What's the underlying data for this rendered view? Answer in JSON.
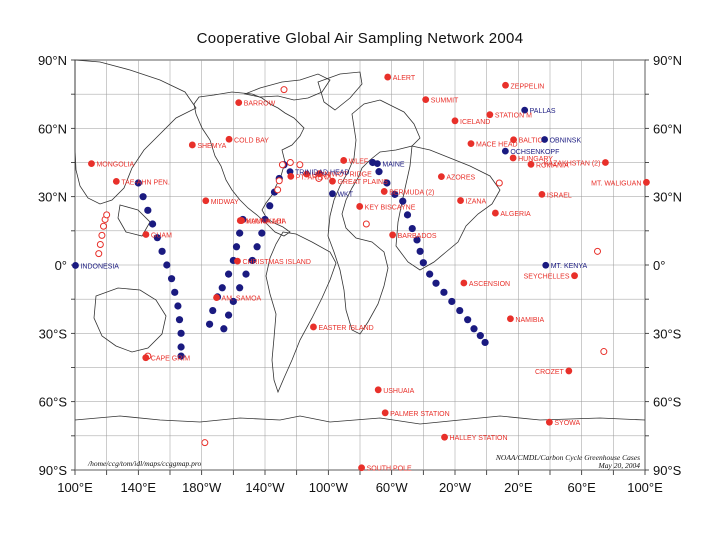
{
  "title": "Cooperative Global Air Sampling Network 2004",
  "colors": {
    "surface": "#e8302a",
    "ship": "#1a1a80",
    "tower": "#1a1a80",
    "grid": "#9a9a9a",
    "coast": "#333333"
  },
  "axes": {
    "lat_labels": [
      {
        "lat": 90,
        "text": "90°N"
      },
      {
        "lat": 60,
        "text": "60°N"
      },
      {
        "lat": 30,
        "text": "30°N"
      },
      {
        "lat": 0,
        "text": "0°"
      },
      {
        "lat": -30,
        "text": "30°S"
      },
      {
        "lat": -60,
        "text": "60°S"
      },
      {
        "lat": -90,
        "text": "90°S"
      }
    ],
    "lon_labels": [
      {
        "lon": 100,
        "text": "100°E"
      },
      {
        "lon": 140,
        "text": "140°E"
      },
      {
        "lon": 180,
        "text": "180°W"
      },
      {
        "lon": 220,
        "text": "140°W"
      },
      {
        "lon": 260,
        "text": "100°W"
      },
      {
        "lon": 300,
        "text": "60°W"
      },
      {
        "lon": 340,
        "text": "20°W"
      },
      {
        "lon": 380,
        "text": "20°E"
      },
      {
        "lon": 420,
        "text": "60°E"
      },
      {
        "lon": 460,
        "text": "100°E"
      }
    ]
  },
  "stations": [
    {
      "name": "ALERT",
      "lon": 297.5,
      "lat": 82.5,
      "color": "red",
      "type": "filled"
    },
    {
      "name": "ZEPPELIN",
      "lon": 371.9,
      "lat": 78.9,
      "color": "red",
      "type": "filled"
    },
    {
      "name": "BARROW",
      "lon": 203.4,
      "lat": 71.3,
      "color": "red",
      "type": "filled"
    },
    {
      "name": "SUMMIT",
      "lon": 321.5,
      "lat": 72.6,
      "color": "red",
      "type": "filled"
    },
    {
      "name": "PALLAS",
      "lon": 384.0,
      "lat": 68.0,
      "color": "blue",
      "type": "filled"
    },
    {
      "name": "STATION M",
      "lon": 362.0,
      "lat": 66.0,
      "color": "red",
      "type": "filled"
    },
    {
      "name": "ICELAND",
      "lon": 340.0,
      "lat": 63.3,
      "color": "red",
      "type": "filled"
    },
    {
      "name": "BALTIC",
      "lon": 377.0,
      "lat": 55.0,
      "color": "red",
      "type": "filled"
    },
    {
      "name": "OBNINSK",
      "lon": 396.6,
      "lat": 55.1,
      "color": "blue",
      "type": "filled"
    },
    {
      "name": "COLD BAY",
      "lon": 197.3,
      "lat": 55.2,
      "color": "red",
      "type": "filled"
    },
    {
      "name": "SHEMYA",
      "lon": 174.1,
      "lat": 52.7,
      "color": "red",
      "type": "filled"
    },
    {
      "name": "MACE HEAD",
      "lon": 350.1,
      "lat": 53.3,
      "color": "red",
      "type": "filled"
    },
    {
      "name": "OCHSENKOPF",
      "lon": 371.8,
      "lat": 50.0,
      "color": "blue",
      "type": "filled"
    },
    {
      "name": "HUNGARY",
      "lon": 376.7,
      "lat": 47.0,
      "color": "red",
      "type": "filled"
    },
    {
      "name": "KAZAKHSTAN (2)",
      "lon": 435.0,
      "lat": 45.0,
      "color": "red",
      "type": "filled"
    },
    {
      "name": "ROMANIA",
      "lon": 388.0,
      "lat": 44.2,
      "color": "red",
      "type": "filled"
    },
    {
      "name": "MONGOLIA",
      "lon": 110.4,
      "lat": 44.5,
      "color": "red",
      "type": "filled"
    },
    {
      "name": "UTAH",
      "lon": 246.3,
      "lat": 39.9,
      "color": "red",
      "type": "filled"
    },
    {
      "name": "WLEF",
      "lon": 269.7,
      "lat": 45.9,
      "color": "red",
      "type": "filled"
    },
    {
      "name": "MAINE",
      "lon": 291.0,
      "lat": 44.5,
      "color": "blue",
      "type": "filled"
    },
    {
      "name": "NIWOT RIDGE",
      "lon": 254.4,
      "lat": 40.1,
      "color": "red",
      "type": "filled"
    },
    {
      "name": "GREAT PLAINS",
      "lon": 262.6,
      "lat": 36.8,
      "color": "red",
      "type": "filled"
    },
    {
      "name": "TRINIDAD HEAD",
      "lon": 235.8,
      "lat": 41.0,
      "color": "blue",
      "type": "filled"
    },
    {
      "name": "PT. ARENA",
      "lon": 236.3,
      "lat": 38.9,
      "color": "red",
      "type": "filled"
    },
    {
      "name": "WKT",
      "lon": 262.6,
      "lat": 31.3,
      "color": "blue",
      "type": "filled"
    },
    {
      "name": "AZORES",
      "lon": 331.4,
      "lat": 38.8,
      "color": "red",
      "type": "filled"
    },
    {
      "name": "MT. WALIGUAN",
      "lon": 460.9,
      "lat": 36.3,
      "color": "red",
      "type": "filled"
    },
    {
      "name": "BERMUDA (2)",
      "lon": 295.3,
      "lat": 32.3,
      "color": "red",
      "type": "filled"
    },
    {
      "name": "KEY BISCAYNE",
      "lon": 279.8,
      "lat": 25.7,
      "color": "red",
      "type": "filled"
    },
    {
      "name": "IZANA",
      "lon": 343.5,
      "lat": 28.3,
      "color": "red",
      "type": "filled"
    },
    {
      "name": "ISRAEL",
      "lon": 394.9,
      "lat": 31.0,
      "color": "red",
      "type": "filled"
    },
    {
      "name": "ALGERIA",
      "lon": 365.5,
      "lat": 22.8,
      "color": "red",
      "type": "filled"
    },
    {
      "name": "MIDWAY",
      "lon": 182.6,
      "lat": 28.2,
      "color": "red",
      "type": "filled"
    },
    {
      "name": "TAE-AHN PEN.",
      "lon": 126.1,
      "lat": 36.7,
      "color": "red",
      "type": "filled"
    },
    {
      "name": "MAUNA LOA",
      "lon": 204.4,
      "lat": 19.5,
      "color": "red",
      "type": "filled"
    },
    {
      "name": "KUMUKAHI",
      "lon": 205.2,
      "lat": 19.5,
      "color": "red",
      "type": "filled"
    },
    {
      "name": "BARBADOS",
      "lon": 300.6,
      "lat": 13.2,
      "color": "red",
      "type": "filled"
    },
    {
      "name": "GUAM",
      "lon": 144.8,
      "lat": 13.4,
      "color": "red",
      "type": "filled"
    },
    {
      "name": "CHRISTMAS ISLAND",
      "lon": 202.6,
      "lat": 1.7,
      "color": "red",
      "type": "filled"
    },
    {
      "name": "MT. KENYA",
      "lon": 397.3,
      "lat": -0.1,
      "color": "blue",
      "type": "filled"
    },
    {
      "name": "INDONESIA",
      "lon": 100.3,
      "lat": -0.2,
      "color": "blue",
      "type": "filled"
    },
    {
      "name": "SEYCHELLES",
      "lon": 415.5,
      "lat": -4.7,
      "color": "red",
      "type": "filled"
    },
    {
      "name": "ASCENSION",
      "lon": 345.6,
      "lat": -7.9,
      "color": "red",
      "type": "filled"
    },
    {
      "name": "AM. SAMOA",
      "lon": 189.4,
      "lat": -14.3,
      "color": "red",
      "type": "filled"
    },
    {
      "name": "NAMIBIA",
      "lon": 375.0,
      "lat": -23.6,
      "color": "red",
      "type": "filled"
    },
    {
      "name": "EASTER ISLAND",
      "lon": 250.6,
      "lat": -27.2,
      "color": "red",
      "type": "filled"
    },
    {
      "name": "CAPE GRIM",
      "lon": 144.7,
      "lat": -40.7,
      "color": "red",
      "type": "filled"
    },
    {
      "name": "CROZET",
      "lon": 411.9,
      "lat": -46.5,
      "color": "red",
      "type": "filled"
    },
    {
      "name": "USHUAIA",
      "lon": 291.5,
      "lat": -54.8,
      "color": "red",
      "type": "filled"
    },
    {
      "name": "PALMER STATION",
      "lon": 295.9,
      "lat": -64.9,
      "color": "red",
      "type": "filled"
    },
    {
      "name": "SYOWA",
      "lon": 399.6,
      "lat": -69.0,
      "color": "red",
      "type": "filled"
    },
    {
      "name": "HALLEY STATION",
      "lon": 333.4,
      "lat": -75.6,
      "color": "red",
      "type": "filled"
    },
    {
      "name": "SOUTH POLE",
      "lon": 281.0,
      "lat": -89.0,
      "color": "red",
      "type": "filled"
    }
  ],
  "label_offsets_note": "",
  "ship_tracks": {
    "pacific_west": [
      [
        140,
        36
      ],
      [
        143,
        30
      ],
      [
        146,
        24
      ],
      [
        149,
        18
      ],
      [
        152,
        12
      ],
      [
        155,
        6
      ],
      [
        158,
        0
      ],
      [
        161,
        -6
      ],
      [
        163,
        -12
      ],
      [
        165,
        -18
      ],
      [
        166,
        -24
      ],
      [
        167,
        -30
      ],
      [
        167,
        -36
      ],
      [
        167,
        -40
      ]
    ],
    "pacific_east": [
      [
        232,
        44
      ],
      [
        229,
        38
      ],
      [
        226,
        32
      ],
      [
        223,
        26
      ],
      [
        220,
        20
      ],
      [
        218,
        14
      ],
      [
        215,
        8
      ],
      [
        212,
        2
      ],
      [
        208,
        -4
      ],
      [
        204,
        -10
      ],
      [
        200,
        -16
      ],
      [
        197,
        -22
      ],
      [
        194,
        -28
      ]
    ],
    "pacific_mid": [
      [
        206,
        20
      ],
      [
        204,
        14
      ],
      [
        202,
        8
      ],
      [
        200,
        2
      ],
      [
        197,
        -4
      ],
      [
        193,
        -10
      ],
      [
        190,
        -14
      ],
      [
        187,
        -20
      ],
      [
        185,
        -26
      ]
    ],
    "atlantic": [
      [
        288,
        45
      ],
      [
        292,
        41
      ],
      [
        297,
        36
      ],
      [
        302,
        31
      ],
      [
        307,
        28
      ],
      [
        310,
        22
      ],
      [
        313,
        16
      ],
      [
        316,
        11
      ],
      [
        318,
        6
      ],
      [
        320,
        1
      ],
      [
        324,
        -4
      ],
      [
        328,
        -8
      ],
      [
        333,
        -12
      ],
      [
        338,
        -16
      ],
      [
        343,
        -20
      ],
      [
        348,
        -24
      ],
      [
        352,
        -28
      ],
      [
        356,
        -31
      ],
      [
        359,
        -34
      ]
    ]
  },
  "open_markers": [
    [
      242,
      44
    ],
    [
      236,
      45
    ],
    [
      231,
      44
    ],
    [
      229,
      37
    ],
    [
      228,
      33
    ],
    [
      254,
      38
    ],
    [
      119,
      20
    ],
    [
      118,
      17
    ],
    [
      117,
      13
    ],
    [
      116,
      9
    ],
    [
      115,
      5
    ],
    [
      120,
      22
    ],
    [
      284,
      18
    ],
    [
      182,
      -78
    ],
    [
      434,
      -38
    ],
    [
      430,
      6
    ],
    [
      232,
      77
    ],
    [
      368,
      36
    ],
    [
      146,
      -40
    ]
  ],
  "footer_left": "/home/ccg/tom/idl/maps/ccggmap.pro",
  "footer_right_1": "NOAA/CMDL/Carbon Cycle Greenhouse Cases",
  "footer_right_2": "May 20, 2004"
}
